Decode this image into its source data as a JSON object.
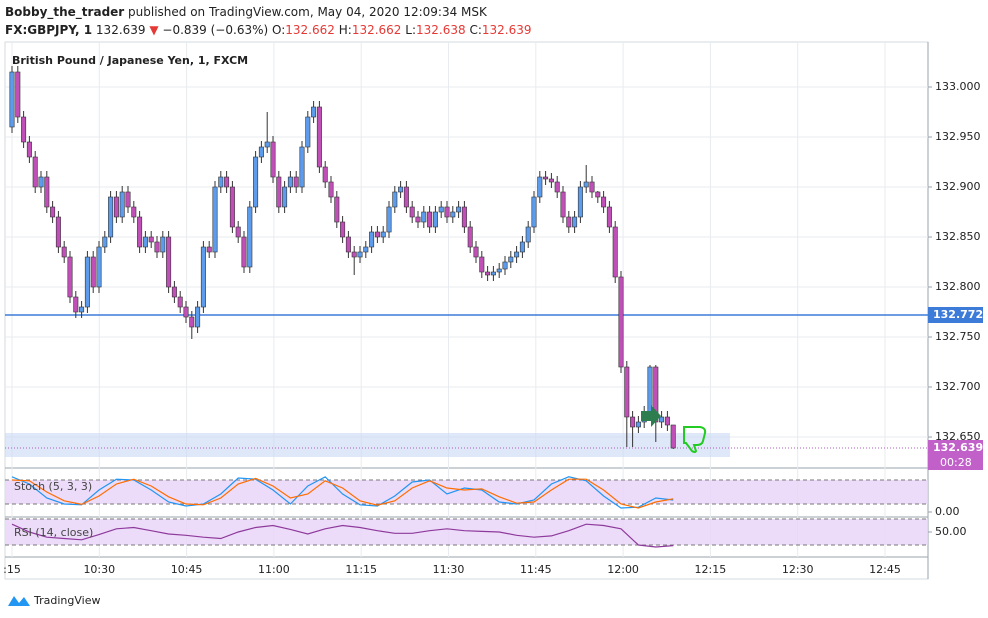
{
  "header": {
    "author": "Bobby_the_trader",
    "published": " published on TradingView.com, May 04, 2020 12:09:34 MSK",
    "symbol": "FX:GBPJPY, 1",
    "last": "132.639",
    "change": "−0.839 (−0.63%)",
    "o_label": "O:",
    "o": "132.662",
    "h_label": "H:",
    "h": "132.662",
    "l_label": "L:",
    "l": "132.638",
    "c_label": "C:",
    "c": "132.639"
  },
  "chart_data": {
    "type": "candlestick",
    "title": "British Pound / Japanese Yen, 1, FXCM",
    "up_color": "#5d9cec",
    "down_color": "#c050b8",
    "time_labels": [
      ":15",
      "10:30",
      "10:45",
      "11:00",
      "11:15",
      "11:30",
      "11:45",
      "12:00",
      "12:15",
      "12:30",
      "12:45"
    ],
    "ylim": [
      133.045,
      132.619
    ],
    "yticks": [
      {
        "value": 133.0,
        "label": "133.000"
      },
      {
        "value": 132.95,
        "label": "132.950"
      },
      {
        "value": 132.9,
        "label": "132.900"
      },
      {
        "value": 132.85,
        "label": "132.850"
      },
      {
        "value": 132.8,
        "label": "132.800"
      },
      {
        "value": 132.75,
        "label": "132.750"
      },
      {
        "value": 132.7,
        "label": "132.700"
      },
      {
        "value": 132.65,
        "label": "132.650"
      }
    ],
    "hline": {
      "value": 132.772,
      "label": "132.772",
      "color": "#3d7bd9"
    },
    "zone": [
      132.654,
      132.63
    ],
    "last_label": "132.639",
    "countdown": "00:28",
    "open": [
      132.96,
      133.015,
      132.97,
      132.945,
      132.93,
      132.9,
      132.91,
      132.88,
      132.87,
      132.84,
      132.83,
      132.79,
      132.775,
      132.78,
      132.83,
      132.8,
      132.84,
      132.85,
      132.89,
      132.87,
      132.895,
      132.88,
      132.87,
      132.84,
      132.85,
      132.845,
      132.835,
      132.85,
      132.8,
      132.79,
      132.78,
      132.77,
      132.76,
      132.78,
      132.84,
      132.835,
      132.9,
      132.91,
      132.9,
      132.86,
      132.85,
      132.82,
      132.88,
      132.93,
      132.94,
      132.945,
      132.91,
      132.88,
      132.9,
      132.91,
      132.9,
      132.94,
      132.97,
      132.98,
      132.92,
      132.905,
      132.89,
      132.865,
      132.85,
      132.835,
      132.83,
      132.835,
      132.84,
      132.855,
      132.85,
      132.855,
      132.88,
      132.895,
      132.9,
      132.88,
      132.87,
      132.865,
      132.875,
      132.86,
      132.875,
      132.88,
      132.87,
      132.875,
      132.88,
      132.86,
      132.84,
      132.83,
      132.815,
      132.812,
      132.815,
      132.818,
      132.825,
      132.83,
      132.835,
      132.845,
      132.86,
      132.89,
      132.91,
      132.908,
      132.905,
      132.895,
      132.87,
      132.86,
      132.87,
      132.9,
      132.905,
      132.895,
      132.89,
      132.88,
      132.86,
      132.81,
      132.72,
      132.67,
      132.66,
      132.665,
      132.675,
      132.72,
      132.665,
      132.67,
      132.662
    ],
    "high": [
      133.021,
      133.021,
      132.976,
      132.951,
      132.936,
      132.916,
      132.916,
      132.886,
      132.876,
      132.846,
      132.836,
      132.796,
      132.786,
      132.836,
      132.836,
      132.846,
      132.856,
      132.896,
      132.896,
      132.901,
      132.901,
      132.886,
      132.876,
      132.856,
      132.856,
      132.851,
      132.856,
      132.856,
      132.806,
      132.796,
      132.786,
      132.776,
      132.786,
      132.846,
      132.846,
      132.906,
      132.916,
      132.916,
      132.906,
      132.866,
      132.856,
      132.886,
      132.936,
      132.946,
      132.975,
      132.951,
      132.916,
      132.906,
      132.916,
      132.916,
      132.946,
      132.976,
      132.986,
      132.986,
      132.926,
      132.911,
      132.896,
      132.871,
      132.856,
      132.841,
      132.841,
      132.846,
      132.861,
      132.861,
      132.861,
      132.886,
      132.901,
      132.906,
      132.906,
      132.886,
      132.876,
      132.881,
      132.881,
      132.881,
      132.886,
      132.886,
      132.881,
      132.886,
      132.886,
      132.866,
      132.846,
      132.836,
      132.821,
      132.821,
      132.824,
      132.831,
      132.836,
      132.841,
      132.851,
      132.866,
      132.896,
      132.916,
      132.916,
      132.914,
      132.911,
      132.901,
      132.876,
      132.876,
      132.906,
      132.922,
      132.911,
      132.896,
      132.896,
      132.886,
      132.866,
      132.816,
      132.726,
      132.676,
      132.671,
      132.681,
      132.722,
      132.722,
      132.676,
      132.676,
      132.662
    ],
    "low": [
      132.954,
      132.964,
      132.939,
      132.924,
      132.894,
      132.894,
      132.874,
      132.864,
      132.834,
      132.824,
      132.784,
      132.769,
      132.769,
      132.774,
      132.794,
      132.794,
      132.834,
      132.844,
      132.864,
      132.864,
      132.874,
      132.864,
      132.834,
      132.834,
      132.839,
      132.829,
      132.829,
      132.794,
      132.784,
      132.774,
      132.764,
      132.748,
      132.754,
      132.774,
      132.829,
      132.829,
      132.894,
      132.894,
      132.854,
      132.844,
      132.814,
      132.814,
      132.874,
      132.924,
      132.934,
      132.904,
      132.874,
      132.874,
      132.894,
      132.894,
      132.894,
      132.934,
      132.964,
      132.914,
      132.899,
      132.884,
      132.859,
      132.844,
      132.829,
      132.812,
      132.824,
      132.829,
      132.834,
      132.844,
      132.844,
      132.849,
      132.874,
      132.889,
      132.874,
      132.864,
      132.859,
      132.859,
      132.854,
      132.854,
      132.869,
      132.864,
      132.864,
      132.869,
      132.854,
      132.834,
      132.824,
      132.809,
      132.806,
      132.806,
      132.809,
      132.812,
      132.819,
      132.824,
      132.829,
      132.839,
      132.854,
      132.884,
      132.902,
      132.899,
      132.889,
      132.864,
      132.854,
      132.854,
      132.864,
      132.894,
      132.889,
      132.884,
      132.874,
      132.854,
      132.804,
      132.714,
      132.64,
      132.64,
      132.654,
      132.659,
      132.669,
      132.645,
      132.659,
      132.656,
      132.638
    ],
    "close": [
      133.015,
      132.97,
      132.945,
      132.93,
      132.9,
      132.91,
      132.88,
      132.87,
      132.84,
      132.83,
      132.79,
      132.775,
      132.78,
      132.83,
      132.8,
      132.84,
      132.85,
      132.89,
      132.87,
      132.895,
      132.88,
      132.87,
      132.84,
      132.85,
      132.845,
      132.835,
      132.85,
      132.8,
      132.79,
      132.78,
      132.77,
      132.76,
      132.78,
      132.84,
      132.835,
      132.9,
      132.91,
      132.9,
      132.86,
      132.85,
      132.82,
      132.88,
      132.93,
      132.94,
      132.945,
      132.91,
      132.88,
      132.9,
      132.91,
      132.9,
      132.94,
      132.97,
      132.98,
      132.92,
      132.905,
      132.89,
      132.865,
      132.85,
      132.835,
      132.83,
      132.835,
      132.84,
      132.855,
      132.85,
      132.855,
      132.88,
      132.895,
      132.9,
      132.88,
      132.87,
      132.865,
      132.875,
      132.86,
      132.875,
      132.88,
      132.87,
      132.875,
      132.88,
      132.86,
      132.84,
      132.83,
      132.815,
      132.812,
      132.815,
      132.818,
      132.825,
      132.83,
      132.835,
      132.845,
      132.86,
      132.89,
      132.91,
      132.908,
      132.905,
      132.895,
      132.87,
      132.86,
      132.87,
      132.9,
      132.905,
      132.895,
      132.89,
      132.88,
      132.86,
      132.81,
      132.72,
      132.67,
      132.66,
      132.665,
      132.675,
      132.72,
      132.665,
      132.67,
      132.662,
      132.639
    ]
  },
  "stoch": {
    "title": "Stoch (5, 3, 3)",
    "ylim": [
      0,
      100
    ],
    "bands": [
      80,
      20
    ],
    "yticks": [
      {
        "value": 0,
        "label": "0.00"
      }
    ],
    "series": [
      {
        "name": "%K",
        "color": "#2196f3",
        "values": [
          88,
          70,
          35,
          20,
          18,
          55,
          82,
          80,
          55,
          25,
          15,
          20,
          45,
          85,
          82,
          55,
          20,
          65,
          88,
          45,
          18,
          15,
          40,
          75,
          80,
          45,
          60,
          55,
          25,
          20,
          30,
          70,
          88,
          78,
          40,
          10,
          12,
          35,
          30
        ]
      },
      {
        "name": "%D",
        "color": "#ff6d00",
        "values": [
          80,
          78,
          50,
          28,
          19,
          40,
          70,
          82,
          65,
          38,
          20,
          18,
          35,
          70,
          84,
          65,
          35,
          45,
          78,
          60,
          28,
          17,
          28,
          60,
          78,
          60,
          55,
          58,
          38,
          22,
          25,
          55,
          82,
          82,
          55,
          20,
          10,
          25,
          33
        ]
      }
    ]
  },
  "rsi": {
    "title": "RSI (14, close)",
    "bands": [
      70,
      30
    ],
    "yticks": [
      {
        "value": 50,
        "label": "50.00"
      }
    ],
    "color": "#8e3a9c",
    "values": [
      62,
      50,
      42,
      40,
      38,
      46,
      55,
      57,
      52,
      47,
      45,
      42,
      40,
      50,
      57,
      60,
      54,
      47,
      55,
      60,
      57,
      52,
      48,
      48,
      52,
      55,
      52,
      51,
      50,
      45,
      42,
      44,
      52,
      62,
      60,
      55,
      30,
      27,
      29
    ]
  },
  "footer": {
    "brand": "TradingView"
  }
}
